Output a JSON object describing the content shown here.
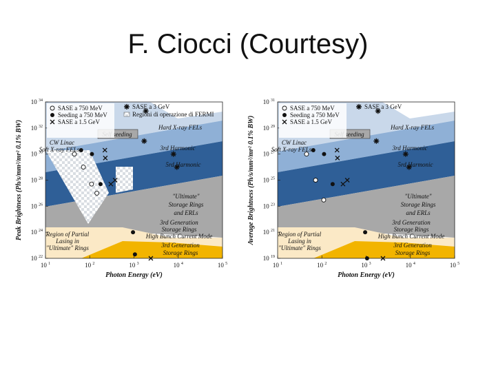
{
  "slide": {
    "title": "F. Ciocci (Courtesy)"
  },
  "chart_data": [
    {
      "type": "scatter",
      "panel": "left",
      "xlabel": "Photon Energy (eV)",
      "ylabel": "Peak Brightness (Ph/s/mm²/mr² 0.1% BW)",
      "xscale": "log",
      "yscale": "log",
      "xlim": [
        10,
        100000
      ],
      "ylim": [
        1e+22,
        1e+34
      ],
      "xticks": [
        {
          "base": "10",
          "exp": "1"
        },
        {
          "base": "10",
          "exp": "2"
        },
        {
          "base": "10",
          "exp": "3"
        },
        {
          "base": "10",
          "exp": "4"
        },
        {
          "base": "10",
          "exp": "5"
        }
      ],
      "yticks": [
        {
          "base": "10",
          "exp": "22"
        },
        {
          "base": "10",
          "exp": "24"
        },
        {
          "base": "10",
          "exp": "26"
        },
        {
          "base": "10",
          "exp": "28"
        },
        {
          "base": "10",
          "exp": "30"
        },
        {
          "base": "10",
          "exp": "32"
        },
        {
          "base": "10",
          "exp": "34"
        }
      ],
      "legend": [
        {
          "marker": "open-circle",
          "label": "SASE a 750 MeV"
        },
        {
          "marker": "filled-circle",
          "label": "Seeding a 750 MeV"
        },
        {
          "marker": "cross",
          "label": "SASE a 1.5 GeV"
        },
        {
          "marker": "star",
          "label": "SASE a 3 GeV"
        },
        {
          "marker": "box",
          "label": "Regioni di operazione di FERMI"
        }
      ],
      "regions": [
        {
          "label": "Self seeding"
        },
        {
          "label": "Hard X-ray FELs"
        },
        {
          "label": "CW Linac"
        },
        {
          "label": "Soft X-ray FELs"
        },
        {
          "label": "3rd Harmonic"
        },
        {
          "label": "5rd Harmonic"
        },
        {
          "label": "\"Ultimate\""
        },
        {
          "label": "Storage Rings"
        },
        {
          "label": "and ERLs"
        },
        {
          "label": "3rd Generation"
        },
        {
          "label": "Storage Rings"
        },
        {
          "label": "High Bunch Current Mode"
        },
        {
          "label": "3rd Generation"
        },
        {
          "label": "Storage Rings"
        },
        {
          "label": "Region of Partial"
        },
        {
          "label": "Lasing in"
        },
        {
          "label": "\"Ultimate\" Rings"
        }
      ],
      "series": [
        {
          "name": "SASE a 750 MeV",
          "marker": "open-circle",
          "x": [
            45,
            72,
            110,
            145
          ],
          "y": [
            1e+30,
            1e+29,
            5e+27,
            1e+27
          ]
        },
        {
          "name": "Seeding a 750 MeV",
          "marker": "filled-circle",
          "x": [
            64,
            112,
            175,
            950,
            1050
          ],
          "y": [
            2e+30,
            1e+30,
            5e+27,
            1e+24,
            2e+22
          ]
        },
        {
          "name": "SASE a 1.5 GeV",
          "marker": "cross",
          "x": [
            220,
            225,
            300,
            375,
            2400
          ],
          "y": [
            2e+30,
            5e+29,
            5e+27,
            1e+28,
            1e+22
          ]
        },
        {
          "name": "SASE a 3 GeV",
          "marker": "star",
          "x": [
            1850,
            1700,
            7800,
            9300
          ],
          "y": [
            2e+33,
            1e+31,
            1e+30,
            1e+29
          ]
        }
      ]
    },
    {
      "type": "scatter",
      "panel": "right",
      "xlabel": "Photon Energy (eV)",
      "ylabel": "Average Brightness (Ph/s/mm²/mr² 0.1% BW)",
      "xscale": "log",
      "yscale": "log",
      "xlim": [
        10,
        100000
      ],
      "ylim": [
        1e+19,
        1e+31
      ],
      "xticks": [
        {
          "base": "10",
          "exp": "1"
        },
        {
          "base": "10",
          "exp": "2"
        },
        {
          "base": "10",
          "exp": "3"
        },
        {
          "base": "10",
          "exp": "4"
        },
        {
          "base": "10",
          "exp": "5"
        }
      ],
      "yticks": [
        {
          "base": "10",
          "exp": "19"
        },
        {
          "base": "10",
          "exp": "21"
        },
        {
          "base": "10",
          "exp": "23"
        },
        {
          "base": "10",
          "exp": "25"
        },
        {
          "base": "10",
          "exp": "27"
        },
        {
          "base": "10",
          "exp": "29"
        },
        {
          "base": "10",
          "exp": "31"
        }
      ],
      "legend": [
        {
          "marker": "open-circle",
          "label": "SASE a 750 MeV"
        },
        {
          "marker": "filled-circle",
          "label": "Seeding a 750 MeV"
        },
        {
          "marker": "cross",
          "label": "SASE a 1.5 GeV"
        },
        {
          "marker": "star",
          "label": "SASE a 3 GeV"
        }
      ],
      "regions": [
        {
          "label": "Self seeding"
        },
        {
          "label": "Hard X-ray FELs"
        },
        {
          "label": "CW Linac"
        },
        {
          "label": "Soft X-ray FELs"
        },
        {
          "label": "3rd Harmonic"
        },
        {
          "label": "5rd Harmonic"
        },
        {
          "label": "\"Ultimate\""
        },
        {
          "label": "Storage Rings"
        },
        {
          "label": "and ERLs"
        },
        {
          "label": "3rd Generation"
        },
        {
          "label": "Storage Rings"
        },
        {
          "label": "High Bunch Current Mode"
        },
        {
          "label": "3rd Generation"
        },
        {
          "label": "Storage Rings"
        },
        {
          "label": "Region of Partial"
        },
        {
          "label": "Lasing in"
        },
        {
          "label": "\"Ultimate\" Rings"
        }
      ],
      "series": [
        {
          "name": "SASE a 750 MeV",
          "marker": "open-circle",
          "x": [
            45,
            72,
            110
          ],
          "y": [
            1e+27,
            1e+25,
            3e+23
          ]
        },
        {
          "name": "Seeding a 750 MeV",
          "marker": "filled-circle",
          "x": [
            64,
            112,
            175,
            950,
            1050
          ],
          "y": [
            2e+27,
            1e+27,
            5e+24,
            1e+21,
            1e+19
          ]
        },
        {
          "name": "SASE a 1.5 GeV",
          "marker": "cross",
          "x": [
            220,
            225,
            300,
            375,
            2400
          ],
          "y": [
            2e+27,
            5e+26,
            5e+24,
            1e+25,
            1e+19
          ]
        },
        {
          "name": "SASE a 3 GeV",
          "marker": "star",
          "x": [
            1850,
            1700,
            7800,
            9300
          ],
          "y": [
            2e+30,
            1e+28,
            1e+27,
            1e+26
          ]
        }
      ]
    }
  ],
  "colors": {
    "light_blue": "#c9d8ea",
    "mid_blue": "#8fb0d6",
    "dark_blue": "#2f5f97",
    "gray": "#a8a8a8",
    "cream": "#fbe9c6",
    "gold": "#f2b400",
    "checker": "#d9dde2"
  }
}
